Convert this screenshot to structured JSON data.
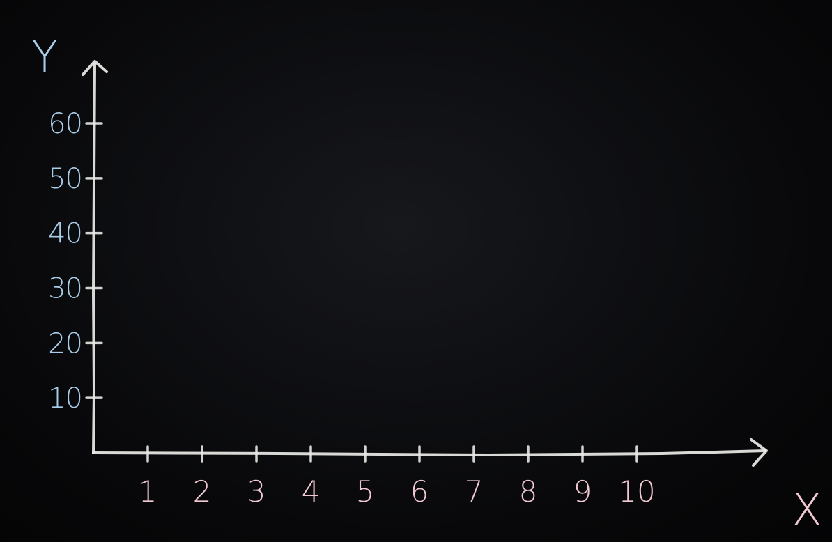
{
  "colors": {
    "board": "#060608",
    "axis_chalk": "#e9e9e6",
    "y_label_chalk": "#a9cde9",
    "x_label_chalk": "#f1c9d2"
  },
  "chart_data": {
    "type": "scatter",
    "title": "",
    "xlabel": "X",
    "ylabel": "Y",
    "x_ticks": [
      "1",
      "2",
      "3",
      "4",
      "5",
      "6",
      "7",
      "8",
      "9",
      "10"
    ],
    "y_ticks": [
      "10",
      "20",
      "30",
      "40",
      "50",
      "60"
    ],
    "xlim": [
      0,
      10
    ],
    "ylim": [
      0,
      60
    ],
    "grid": false,
    "series": []
  }
}
